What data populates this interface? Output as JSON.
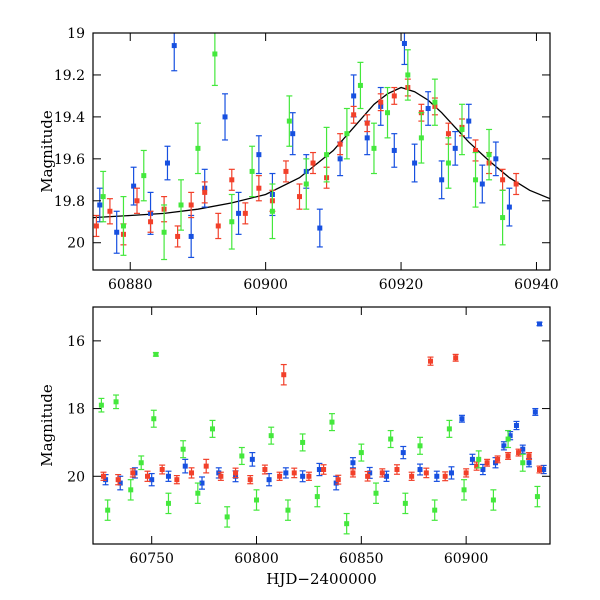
{
  "colors": {
    "blue": "#1750e0",
    "red": "#f2402a",
    "green": "#44e83c",
    "model": "#000000"
  },
  "chart_data": [
    {
      "type": "scatter",
      "xlabel": "",
      "ylabel": "Magnitude",
      "xlim": [
        60874.5,
        60942
      ],
      "ylim": [
        20.13,
        19.0
      ],
      "y_inverted": true,
      "xticks": [
        "60880",
        "60900",
        "60920",
        "60940"
      ],
      "yticks": [
        "19",
        "19.2",
        "19.4",
        "19.6",
        "19.8",
        "20"
      ],
      "xtick_values": [
        60880,
        60900,
        60920,
        60940
      ],
      "ytick_values": [
        19,
        19.2,
        19.4,
        19.6,
        19.8,
        20
      ],
      "model_curve": {
        "x": [
          60874.5,
          60880,
          60885,
          60890,
          60895,
          60900,
          60905,
          60910,
          60913,
          60916,
          60918,
          60920,
          60922,
          60924,
          60926,
          60928,
          60930,
          60933,
          60936,
          60939,
          60942
        ],
        "y": [
          19.88,
          19.87,
          19.86,
          19.84,
          19.81,
          19.77,
          19.69,
          19.56,
          19.45,
          19.34,
          19.29,
          19.26,
          19.28,
          19.32,
          19.38,
          19.45,
          19.52,
          19.61,
          19.69,
          19.75,
          19.79
        ]
      },
      "series": [
        {
          "color": "blue",
          "x": [
            60875.5,
            60878,
            60880.5,
            60883,
            60885.5,
            60886.5,
            60889,
            60891,
            60894,
            60896,
            60899,
            60901,
            60904,
            60906,
            60908,
            60911,
            60913,
            60915,
            60917,
            60919,
            60920.5,
            60922,
            60924,
            60926,
            60928,
            60930,
            60932,
            60934,
            60936
          ],
          "y": [
            19.82,
            19.95,
            19.73,
            19.86,
            19.62,
            19.06,
            19.97,
            19.74,
            19.4,
            19.86,
            19.58,
            19.77,
            19.48,
            19.66,
            19.93,
            19.6,
            19.3,
            19.5,
            19.35,
            19.56,
            19.05,
            19.62,
            19.36,
            19.7,
            19.55,
            19.42,
            19.72,
            19.6,
            19.83
          ],
          "err": [
            0.08,
            0.1,
            0.09,
            0.1,
            0.08,
            0.12,
            0.1,
            0.09,
            0.11,
            0.1,
            0.09,
            0.1,
            0.1,
            0.08,
            0.09,
            0.08,
            0.1,
            0.08,
            0.09,
            0.08,
            0.1,
            0.09,
            0.08,
            0.09,
            0.08,
            0.08,
            0.09,
            0.08,
            0.09
          ]
        },
        {
          "color": "red",
          "x": [
            60875,
            60877,
            60879,
            60881,
            60883,
            60885,
            60887,
            60889,
            60891,
            60893,
            60895,
            60897,
            60899,
            60901,
            60903,
            60905,
            60907,
            60909,
            60911,
            60913,
            60915,
            60917,
            60919,
            60921,
            60923,
            60925,
            60927,
            60929,
            60931,
            60933,
            60935,
            60937
          ],
          "y": [
            19.92,
            19.85,
            19.96,
            19.8,
            19.9,
            19.84,
            19.97,
            19.82,
            19.76,
            19.92,
            19.7,
            19.86,
            19.74,
            19.8,
            19.66,
            19.78,
            19.62,
            19.69,
            19.53,
            19.39,
            19.43,
            19.33,
            19.3,
            19.26,
            19.38,
            19.35,
            19.48,
            19.45,
            19.56,
            19.62,
            19.7,
            19.72
          ],
          "err": [
            0.05,
            0.06,
            0.05,
            0.06,
            0.05,
            0.06,
            0.05,
            0.06,
            0.05,
            0.06,
            0.05,
            0.05,
            0.06,
            0.05,
            0.05,
            0.06,
            0.05,
            0.05,
            0.05,
            0.04,
            0.04,
            0.04,
            0.04,
            0.04,
            0.04,
            0.04,
            0.05,
            0.04,
            0.05,
            0.05,
            0.05,
            0.05
          ]
        },
        {
          "color": "green",
          "x": [
            60876,
            60879,
            60882,
            60885,
            60887.5,
            60890,
            60892.5,
            60895,
            60898,
            60901,
            60903.5,
            60906,
            60909,
            60912,
            60914,
            60916,
            60918,
            60921,
            60923,
            60925,
            60927,
            60929,
            60931,
            60933,
            60935
          ],
          "y": [
            19.78,
            19.92,
            19.68,
            19.95,
            19.82,
            19.55,
            19.1,
            19.9,
            19.66,
            19.85,
            19.42,
            19.72,
            19.58,
            19.48,
            19.25,
            19.55,
            19.38,
            19.2,
            19.5,
            19.33,
            19.62,
            19.46,
            19.7,
            19.58,
            19.88
          ],
          "err": [
            0.12,
            0.14,
            0.12,
            0.13,
            0.12,
            0.12,
            0.15,
            0.13,
            0.12,
            0.13,
            0.12,
            0.12,
            0.13,
            0.12,
            0.11,
            0.12,
            0.12,
            0.12,
            0.12,
            0.11,
            0.12,
            0.12,
            0.13,
            0.12,
            0.13
          ]
        }
      ]
    },
    {
      "type": "scatter",
      "xlabel": "HJD−2400000",
      "ylabel": "Magnitude",
      "xlim": [
        60722,
        60940
      ],
      "ylim": [
        22.0,
        15.0
      ],
      "y_inverted": true,
      "xticks": [
        "60750",
        "60800",
        "60850",
        "60900"
      ],
      "yticks": [
        "16",
        "18",
        "20"
      ],
      "xtick_values": [
        60750,
        60800,
        60850,
        60900
      ],
      "ytick_values": [
        16,
        18,
        20
      ],
      "series": [
        {
          "color": "blue",
          "x": [
            60728,
            60735,
            60742,
            60750,
            60758,
            60766,
            60774,
            60782,
            60790,
            60798,
            60806,
            60814,
            60822,
            60830,
            60838,
            60846,
            60854,
            60862,
            60870,
            60878,
            60886,
            60893,
            60898,
            60903,
            60908,
            60914,
            60918,
            60921,
            60924,
            60927,
            60930,
            60933,
            60935,
            60937
          ],
          "y": [
            20.1,
            20.2,
            19.9,
            20.1,
            20.0,
            19.7,
            20.2,
            19.9,
            20.0,
            19.5,
            20.1,
            19.9,
            20.0,
            19.8,
            20.2,
            19.6,
            19.9,
            20.0,
            19.3,
            19.8,
            20.0,
            19.9,
            18.3,
            19.5,
            19.8,
            19.6,
            19.1,
            18.8,
            18.5,
            19.2,
            19.6,
            18.1,
            15.5,
            19.8
          ],
          "err": [
            0.15,
            0.2,
            0.15,
            0.18,
            0.15,
            0.2,
            0.18,
            0.15,
            0.16,
            0.2,
            0.18,
            0.15,
            0.16,
            0.18,
            0.2,
            0.15,
            0.16,
            0.15,
            0.18,
            0.16,
            0.15,
            0.18,
            0.1,
            0.15,
            0.15,
            0.15,
            0.12,
            0.12,
            0.12,
            0.12,
            0.12,
            0.1,
            0.05,
            0.12
          ]
        },
        {
          "color": "red",
          "x": [
            60727,
            60734,
            60741,
            60748,
            60755,
            60762,
            60769,
            60776,
            60783,
            60790,
            60797,
            60804,
            60811,
            60813,
            60818,
            60825,
            60832,
            60839,
            60846,
            60853,
            60860,
            60867,
            60874,
            60881,
            60883,
            60890,
            60895,
            60900,
            60905,
            60910,
            60915,
            60920,
            60925,
            60930,
            60935
          ],
          "y": [
            20.0,
            20.1,
            19.9,
            20.0,
            19.8,
            20.1,
            19.9,
            19.7,
            20.0,
            19.9,
            20.1,
            19.8,
            20.0,
            17.0,
            19.9,
            20.0,
            19.8,
            20.1,
            19.9,
            20.0,
            19.9,
            19.8,
            20.0,
            19.9,
            16.6,
            20.0,
            16.5,
            19.9,
            19.7,
            19.6,
            19.5,
            19.4,
            19.3,
            19.4,
            19.8
          ],
          "err": [
            0.12,
            0.15,
            0.12,
            0.15,
            0.13,
            0.12,
            0.15,
            0.2,
            0.12,
            0.14,
            0.12,
            0.13,
            0.12,
            0.3,
            0.14,
            0.12,
            0.14,
            0.13,
            0.12,
            0.14,
            0.12,
            0.14,
            0.12,
            0.14,
            0.12,
            0.13,
            0.1,
            0.12,
            0.12,
            0.1,
            0.1,
            0.1,
            0.1,
            0.1,
            0.1
          ]
        },
        {
          "color": "green",
          "x": [
            60726,
            60729,
            60733,
            60740,
            60745,
            60751,
            60752,
            60758,
            60765,
            60772,
            60779,
            60786,
            60793,
            60800,
            60807,
            60815,
            60822,
            60829,
            60836,
            60843,
            60850,
            60857,
            60864,
            60871,
            60878,
            60885,
            60892,
            60899,
            60906,
            60913,
            60920,
            60927,
            60934
          ],
          "y": [
            17.9,
            21.0,
            17.8,
            20.4,
            19.6,
            18.3,
            16.4,
            20.8,
            19.2,
            20.5,
            18.6,
            21.2,
            19.4,
            20.7,
            18.8,
            21.0,
            19.0,
            20.6,
            18.4,
            21.4,
            19.3,
            20.5,
            18.9,
            20.8,
            19.1,
            21.0,
            18.6,
            20.4,
            19.5,
            20.7,
            18.9,
            19.6,
            20.6
          ],
          "err": [
            0.2,
            0.3,
            0.2,
            0.3,
            0.2,
            0.25,
            0.05,
            0.3,
            0.25,
            0.3,
            0.25,
            0.3,
            0.25,
            0.3,
            0.25,
            0.3,
            0.25,
            0.3,
            0.25,
            0.3,
            0.25,
            0.3,
            0.25,
            0.3,
            0.25,
            0.3,
            0.25,
            0.3,
            0.25,
            0.3,
            0.25,
            0.25,
            0.3
          ]
        }
      ]
    }
  ]
}
